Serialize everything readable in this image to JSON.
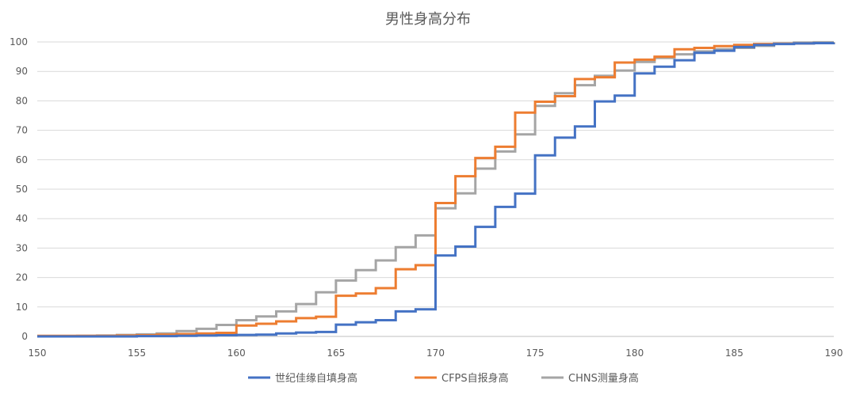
{
  "chart_data": {
    "type": "line",
    "step": true,
    "title": "男性身高分布",
    "xlabel": "",
    "ylabel": "",
    "xlim": [
      150,
      190
    ],
    "ylim": [
      0,
      100
    ],
    "x_ticks": [
      150,
      155,
      160,
      165,
      170,
      175,
      180,
      185,
      190
    ],
    "y_ticks": [
      0,
      10,
      20,
      30,
      40,
      50,
      60,
      70,
      80,
      90,
      100
    ],
    "grid": "horizontal",
    "legend_position": "bottom",
    "x": [
      150,
      151,
      152,
      153,
      154,
      155,
      156,
      157,
      158,
      159,
      160,
      161,
      162,
      163,
      164,
      165,
      166,
      167,
      168,
      169,
      170,
      171,
      172,
      173,
      174,
      175,
      176,
      177,
      178,
      179,
      180,
      181,
      182,
      183,
      184,
      185,
      186,
      187,
      188,
      189,
      190
    ],
    "series": [
      {
        "name": "世纪佳缘自填身高",
        "color": "#4472C4",
        "values": [
          0,
          0,
          0,
          0,
          0,
          0.1,
          0.1,
          0.2,
          0.3,
          0.4,
          0.5,
          0.6,
          1.0,
          1.3,
          1.5,
          4.0,
          4.8,
          5.5,
          8.5,
          9.2,
          27.5,
          30.5,
          37.2,
          44.0,
          48.5,
          61.5,
          67.5,
          71.3,
          79.8,
          81.8,
          89.3,
          91.6,
          93.8,
          96.3,
          97.0,
          98.3,
          99.0,
          99.3,
          99.5,
          99.6,
          99.7
        ]
      },
      {
        "name": "CFPS自报身高",
        "color": "#ED7D31",
        "values": [
          0.2,
          0.2,
          0.2,
          0.2,
          0.3,
          0.4,
          0.6,
          0.8,
          1.0,
          1.2,
          3.7,
          4.3,
          5.1,
          6.2,
          6.7,
          13.8,
          14.6,
          16.4,
          22.8,
          24.2,
          45.3,
          54.4,
          60.6,
          64.4,
          76.0,
          79.7,
          81.6,
          87.4,
          88.0,
          93.0,
          94.0,
          95.0,
          97.5,
          98.0,
          98.6,
          99.0,
          99.3,
          99.4,
          99.5,
          99.6,
          99.7
        ]
      },
      {
        "name": "CHNS测量身高",
        "color": "#A5A5A5",
        "values": [
          0.1,
          0.1,
          0.2,
          0.3,
          0.5,
          0.7,
          1.0,
          1.8,
          2.6,
          3.9,
          5.5,
          6.8,
          8.5,
          11.0,
          15.0,
          19.0,
          22.5,
          25.8,
          30.3,
          34.3,
          43.5,
          48.6,
          57.0,
          62.8,
          68.6,
          78.3,
          82.6,
          85.3,
          88.5,
          90.3,
          93.2,
          94.6,
          95.8,
          96.8,
          97.5,
          98.0,
          98.7,
          99.5,
          99.8,
          99.9,
          100.0
        ]
      }
    ]
  }
}
